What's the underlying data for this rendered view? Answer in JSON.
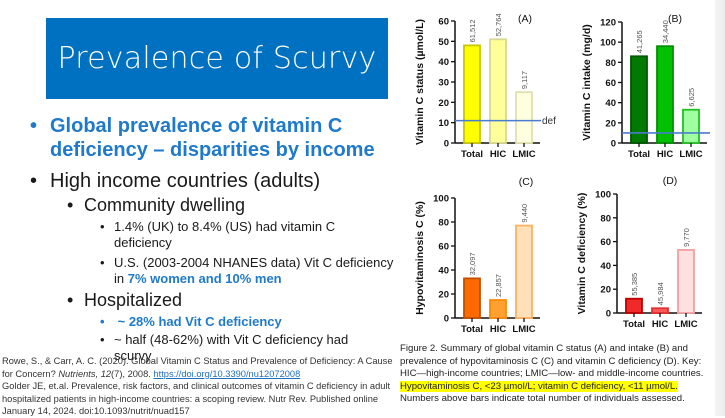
{
  "slide": {
    "title": "Prevalence of Scurvy",
    "bullets": {
      "b1_line1": "Global prevalence of vitamin C",
      "b1_line2": "deficiency – disparities by income",
      "b2": "High income countries (adults)",
      "b2_1": "Community dwelling",
      "b2_1_1_line1": "1.4% (UK) to 8.4% (US) had vitamin C",
      "b2_1_1_line2": "deficiency",
      "b2_1_2_line1": "U.S. (2003-2004 NHANES data) Vit C deficiency",
      "b2_1_2_prefix": "in ",
      "b2_1_2_highlight": "7% women and 10% men",
      "b2_2": "Hospitalized",
      "b2_2_1": " ~ 28% had Vit C deficiency",
      "b2_2_2_line1": "~ half (48-62%) with Vit C deficiency had",
      "b2_2_2_line2": "scurvy"
    },
    "references": {
      "ref1_text": "Rowe, S., & Carr, A. C. (2020). Global Vitamin C Status and Prevalence of Deficiency: A Cause for Concern? ",
      "ref1_journal": "Nutrients, 12",
      "ref1_rest": "(7), 2008. ",
      "ref1_link": "https://doi.org/10.3390/nu12072008",
      "ref2": "Golder JE, et.al. Prevalence, risk factors, and clinical outcomes of vitamin C deficiency in adult hospitalized patients in high-income countries: a scoping review. Nutr Rev. Published online January 14, 2024. doi:10.1093/nutrit/nuad157"
    },
    "caption": {
      "main": "Figure 2. Summary of global vitamin C status (A) and intake (B) and prevalence of hypovitaminosis C (C) and vitamin C deficiency (D). Key: HIC—high-income countries; LMIC—low- and middle-income countries. ",
      "highlight": "Hypovitaminosis C, <23 µmol/L; vitamin C deficiency, <11 µmol/L.",
      "tail": " Numbers above bars indicate total number of individuals assessed."
    },
    "colors": {
      "title_bg": "#0070C0",
      "accent_text": "#1F7ACB",
      "ref_line": "#4A7BD0",
      "highlight": "#FFFF00"
    }
  },
  "chart_data": [
    {
      "type": "bar",
      "panel": "(A)",
      "categories": [
        "Total",
        "HIC",
        "LMIC"
      ],
      "values": [
        48,
        51,
        25
      ],
      "n_labels": [
        "61,512",
        "52,764",
        "9,117"
      ],
      "ylabel": "Vitamin C status (µmol/L)",
      "ylim": [
        0,
        60
      ],
      "yticks": [
        0,
        10,
        20,
        30,
        40,
        50,
        60
      ],
      "ref_line": {
        "value": 11,
        "label": "def"
      },
      "fills": [
        "#FFFF00",
        "#FFFF99",
        "#FFFFE0"
      ],
      "strokes": [
        "#C8C800",
        "#D8D890",
        "#E0E0B0"
      ]
    },
    {
      "type": "bar",
      "panel": "(B)",
      "categories": [
        "Total",
        "HIC",
        "LMIC"
      ],
      "values": [
        86,
        96,
        33
      ],
      "n_labels": [
        "41,265",
        "34,440",
        "6,625"
      ],
      "ylabel": "Vitamin C intake (mg/d)",
      "ylim": [
        0,
        120
      ],
      "yticks": [
        0,
        20,
        40,
        60,
        80,
        100,
        120
      ],
      "ref_line": {
        "value": 10,
        "label": ""
      },
      "fills": [
        "#007A00",
        "#00C000",
        "#A0FFA0"
      ],
      "strokes": [
        "#005500",
        "#009000",
        "#20C020"
      ]
    },
    {
      "type": "bar",
      "panel": "(C)",
      "categories": [
        "Total",
        "HIC",
        "LMIC"
      ],
      "values": [
        33,
        15,
        77
      ],
      "n_labels": [
        "32,097",
        "22,857",
        "9,440"
      ],
      "ylabel": "Hypovitaminosis C (%)",
      "ylim": [
        0,
        100
      ],
      "yticks": [
        0,
        20,
        40,
        60,
        80,
        100
      ],
      "ref_line": null,
      "fills": [
        "#FF6A00",
        "#FFA030",
        "#FFE0B8"
      ],
      "strokes": [
        "#C05000",
        "#FF8A00",
        "#FFB060"
      ]
    },
    {
      "type": "bar",
      "panel": "(D)",
      "categories": [
        "Total",
        "HIC",
        "LMIC"
      ],
      "values": [
        12,
        4,
        53
      ],
      "n_labels": [
        "55,385",
        "45,984",
        "9,770"
      ],
      "ylabel": "Vitamin C deficiency (%)",
      "ylim": [
        0,
        100
      ],
      "yticks": [
        0,
        20,
        40,
        60,
        80,
        100
      ],
      "ref_line": null,
      "fills": [
        "#F02A2A",
        "#FF5A5A",
        "#FFE0E0"
      ],
      "strokes": [
        "#C00000",
        "#E03030",
        "#F0A0A0"
      ]
    }
  ]
}
